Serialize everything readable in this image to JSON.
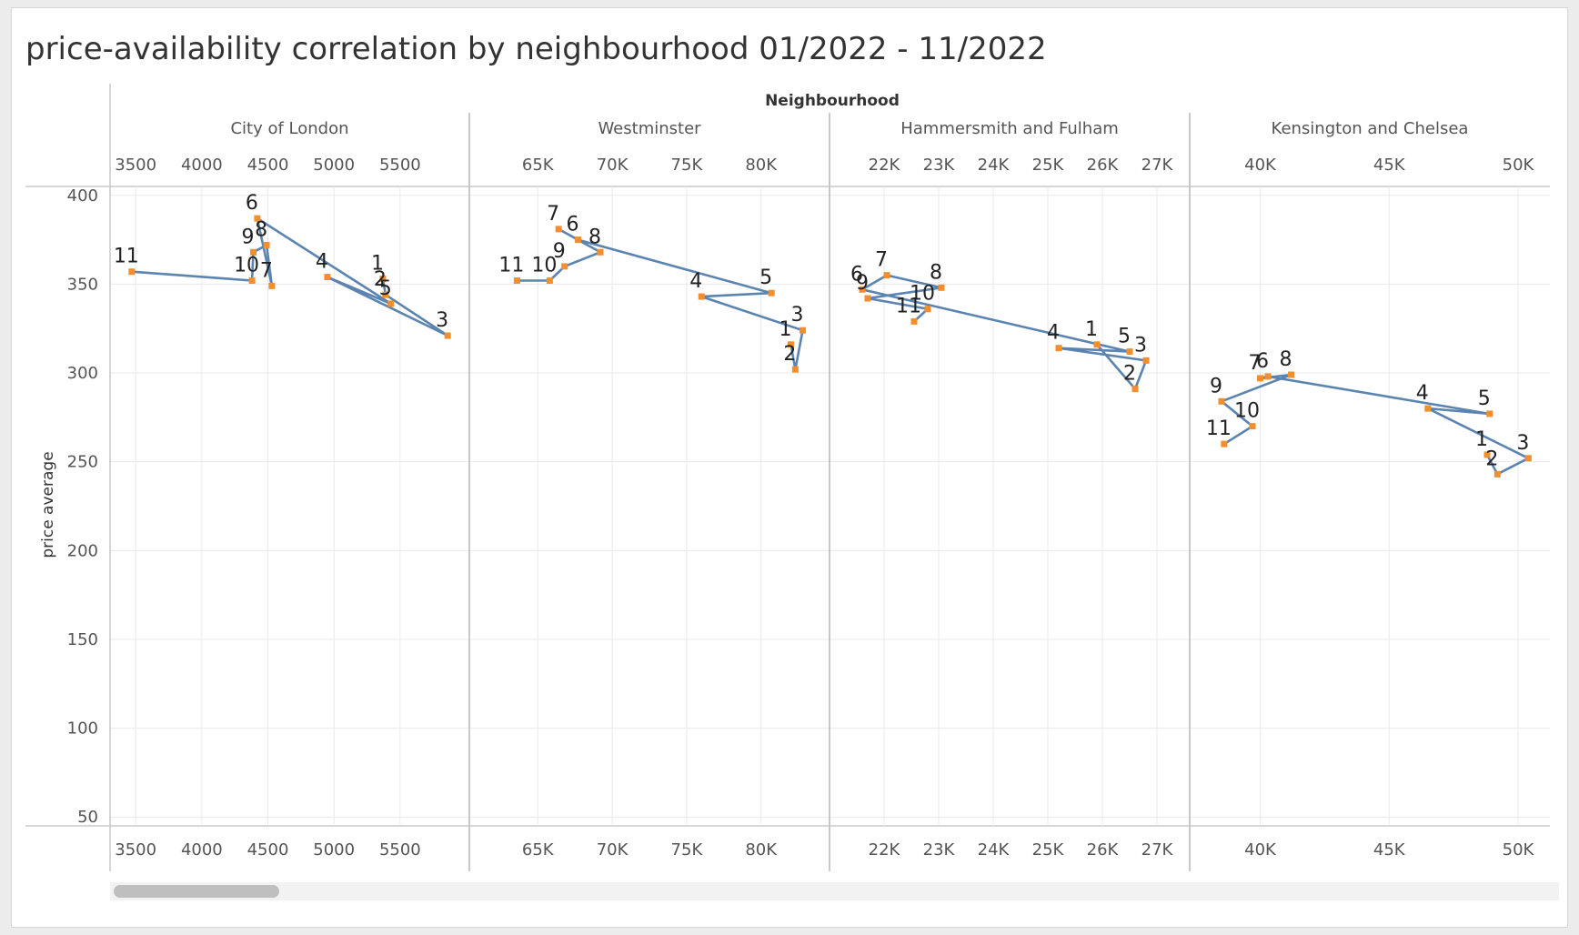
{
  "title": "price-availability correlation by neighbourhood 01/2022 - 11/2022",
  "colors": {
    "line": "#5b84b1",
    "point": "#f28e2b",
    "grid": "#eaeaea",
    "axis": "#c8c8c8",
    "text": "#555555"
  },
  "chart_data": {
    "type": "scatter",
    "connected": true,
    "column_header": "Neighbourhood",
    "ylabel": "price average",
    "ylim": [
      45,
      405
    ],
    "yticks": [
      50,
      100,
      150,
      200,
      250,
      300,
      350,
      400
    ],
    "grid": true,
    "panels": [
      {
        "name": "City of London",
        "xlim": [
          3430,
          5900
        ],
        "xticks": [
          3500,
          4000,
          4500,
          5000,
          5500
        ],
        "xtick_labels": [
          "3500",
          "4000",
          "4500",
          "5000",
          "5500"
        ],
        "points": [
          {
            "label": "1",
            "x": 5370,
            "y": 353
          },
          {
            "label": "2",
            "x": 5390,
            "y": 344
          },
          {
            "label": "3",
            "x": 5860,
            "y": 321
          },
          {
            "label": "4",
            "x": 4950,
            "y": 354
          },
          {
            "label": "5",
            "x": 5430,
            "y": 339
          },
          {
            "label": "6",
            "x": 4420,
            "y": 387
          },
          {
            "label": "7",
            "x": 4530,
            "y": 349
          },
          {
            "label": "8",
            "x": 4490,
            "y": 372
          },
          {
            "label": "9",
            "x": 4390,
            "y": 368
          },
          {
            "label": "10",
            "x": 4380,
            "y": 352
          },
          {
            "label": "11",
            "x": 3470,
            "y": 357
          }
        ]
      },
      {
        "name": "Westminster",
        "xlim": [
          61500,
          83500
        ],
        "xticks": [
          65000,
          70000,
          75000,
          80000
        ],
        "xtick_labels": [
          "65K",
          "70K",
          "75K",
          "80K"
        ],
        "points": [
          {
            "label": "1",
            "x": 82000,
            "y": 316
          },
          {
            "label": "2",
            "x": 82300,
            "y": 302
          },
          {
            "label": "3",
            "x": 82800,
            "y": 324
          },
          {
            "label": "4",
            "x": 76000,
            "y": 343
          },
          {
            "label": "5",
            "x": 80700,
            "y": 345
          },
          {
            "label": "6",
            "x": 67700,
            "y": 375
          },
          {
            "label": "7",
            "x": 66400,
            "y": 381
          },
          {
            "label": "8",
            "x": 69200,
            "y": 368
          },
          {
            "label": "9",
            "x": 66800,
            "y": 360
          },
          {
            "label": "10",
            "x": 65800,
            "y": 352
          },
          {
            "label": "11",
            "x": 63600,
            "y": 352
          }
        ]
      },
      {
        "name": "Hammersmith and Fulham",
        "xlim": [
          21300,
          27300
        ],
        "xticks": [
          22000,
          23000,
          24000,
          25000,
          26000,
          27000
        ],
        "xtick_labels": [
          "22K",
          "23K",
          "24K",
          "25K",
          "26K",
          "27K"
        ],
        "points": [
          {
            "label": "1",
            "x": 25900,
            "y": 316
          },
          {
            "label": "2",
            "x": 26600,
            "y": 291
          },
          {
            "label": "3",
            "x": 26800,
            "y": 307
          },
          {
            "label": "4",
            "x": 25200,
            "y": 314
          },
          {
            "label": "5",
            "x": 26500,
            "y": 312
          },
          {
            "label": "6",
            "x": 21600,
            "y": 347
          },
          {
            "label": "7",
            "x": 22050,
            "y": 355
          },
          {
            "label": "8",
            "x": 23050,
            "y": 348
          },
          {
            "label": "9",
            "x": 21700,
            "y": 342
          },
          {
            "label": "10",
            "x": 22800,
            "y": 336
          },
          {
            "label": "11",
            "x": 22550,
            "y": 329
          }
        ]
      },
      {
        "name": "Kensington and Chelsea",
        "xlim": [
          37900,
          50600
        ],
        "xticks": [
          40000,
          45000,
          50000
        ],
        "xtick_labels": [
          "40K",
          "45K",
          "50K"
        ],
        "points": [
          {
            "label": "1",
            "x": 48800,
            "y": 254
          },
          {
            "label": "2",
            "x": 49200,
            "y": 243
          },
          {
            "label": "3",
            "x": 50400,
            "y": 252
          },
          {
            "label": "4",
            "x": 46500,
            "y": 280
          },
          {
            "label": "5",
            "x": 48900,
            "y": 277
          },
          {
            "label": "6",
            "x": 40300,
            "y": 298
          },
          {
            "label": "7",
            "x": 40000,
            "y": 297
          },
          {
            "label": "8",
            "x": 41200,
            "y": 299
          },
          {
            "label": "9",
            "x": 38500,
            "y": 284
          },
          {
            "label": "10",
            "x": 39700,
            "y": 270
          },
          {
            "label": "11",
            "x": 38600,
            "y": 260
          }
        ]
      }
    ]
  }
}
